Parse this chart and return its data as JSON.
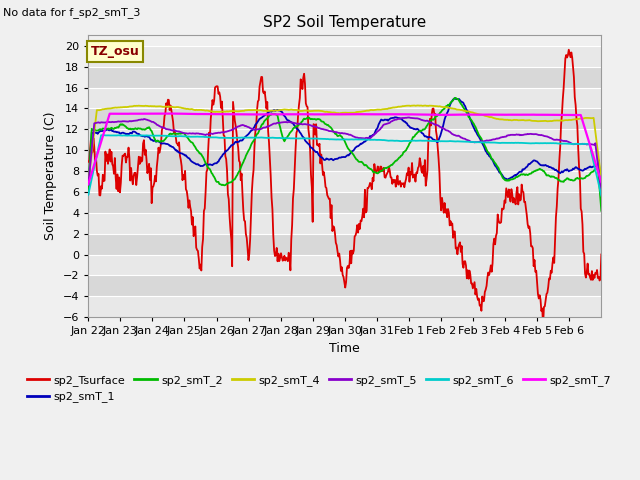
{
  "title": "SP2 Soil Temperature",
  "ylabel": "Soil Temperature (C)",
  "xlabel": "Time",
  "no_data_text": "No data for f_sp2_smT_3",
  "tz_label": "TZ_osu",
  "ylim": [
    -6,
    21
  ],
  "yticks": [
    -6,
    -4,
    -2,
    0,
    2,
    4,
    6,
    8,
    10,
    12,
    14,
    16,
    18,
    20
  ],
  "x_tick_labels": [
    "Jan 22",
    "Jan 23",
    "Jan 24",
    "Jan 25",
    "Jan 26",
    "Jan 27",
    "Jan 28",
    "Jan 29",
    "Jan 30",
    "Jan 31",
    "Feb 1",
    "Feb 2",
    "Feb 3",
    "Feb 4",
    "Feb 5",
    "Feb 6"
  ],
  "bg_color": "#f0f0f0",
  "band_light": "#e8e8e8",
  "band_dark": "#d8d8d8",
  "grid_color": "#ffffff",
  "legend_entries": [
    {
      "label": "sp2_Tsurface",
      "color": "#dd0000"
    },
    {
      "label": "sp2_smT_1",
      "color": "#0000bb"
    },
    {
      "label": "sp2_smT_2",
      "color": "#00bb00"
    },
    {
      "label": "sp2_smT_4",
      "color": "#cccc00"
    },
    {
      "label": "sp2_smT_5",
      "color": "#8800cc"
    },
    {
      "label": "sp2_smT_6",
      "color": "#00cccc"
    },
    {
      "label": "sp2_smT_7",
      "color": "#ff00ff"
    }
  ],
  "n_points": 600,
  "figsize": [
    6.4,
    4.8
  ],
  "dpi": 100
}
